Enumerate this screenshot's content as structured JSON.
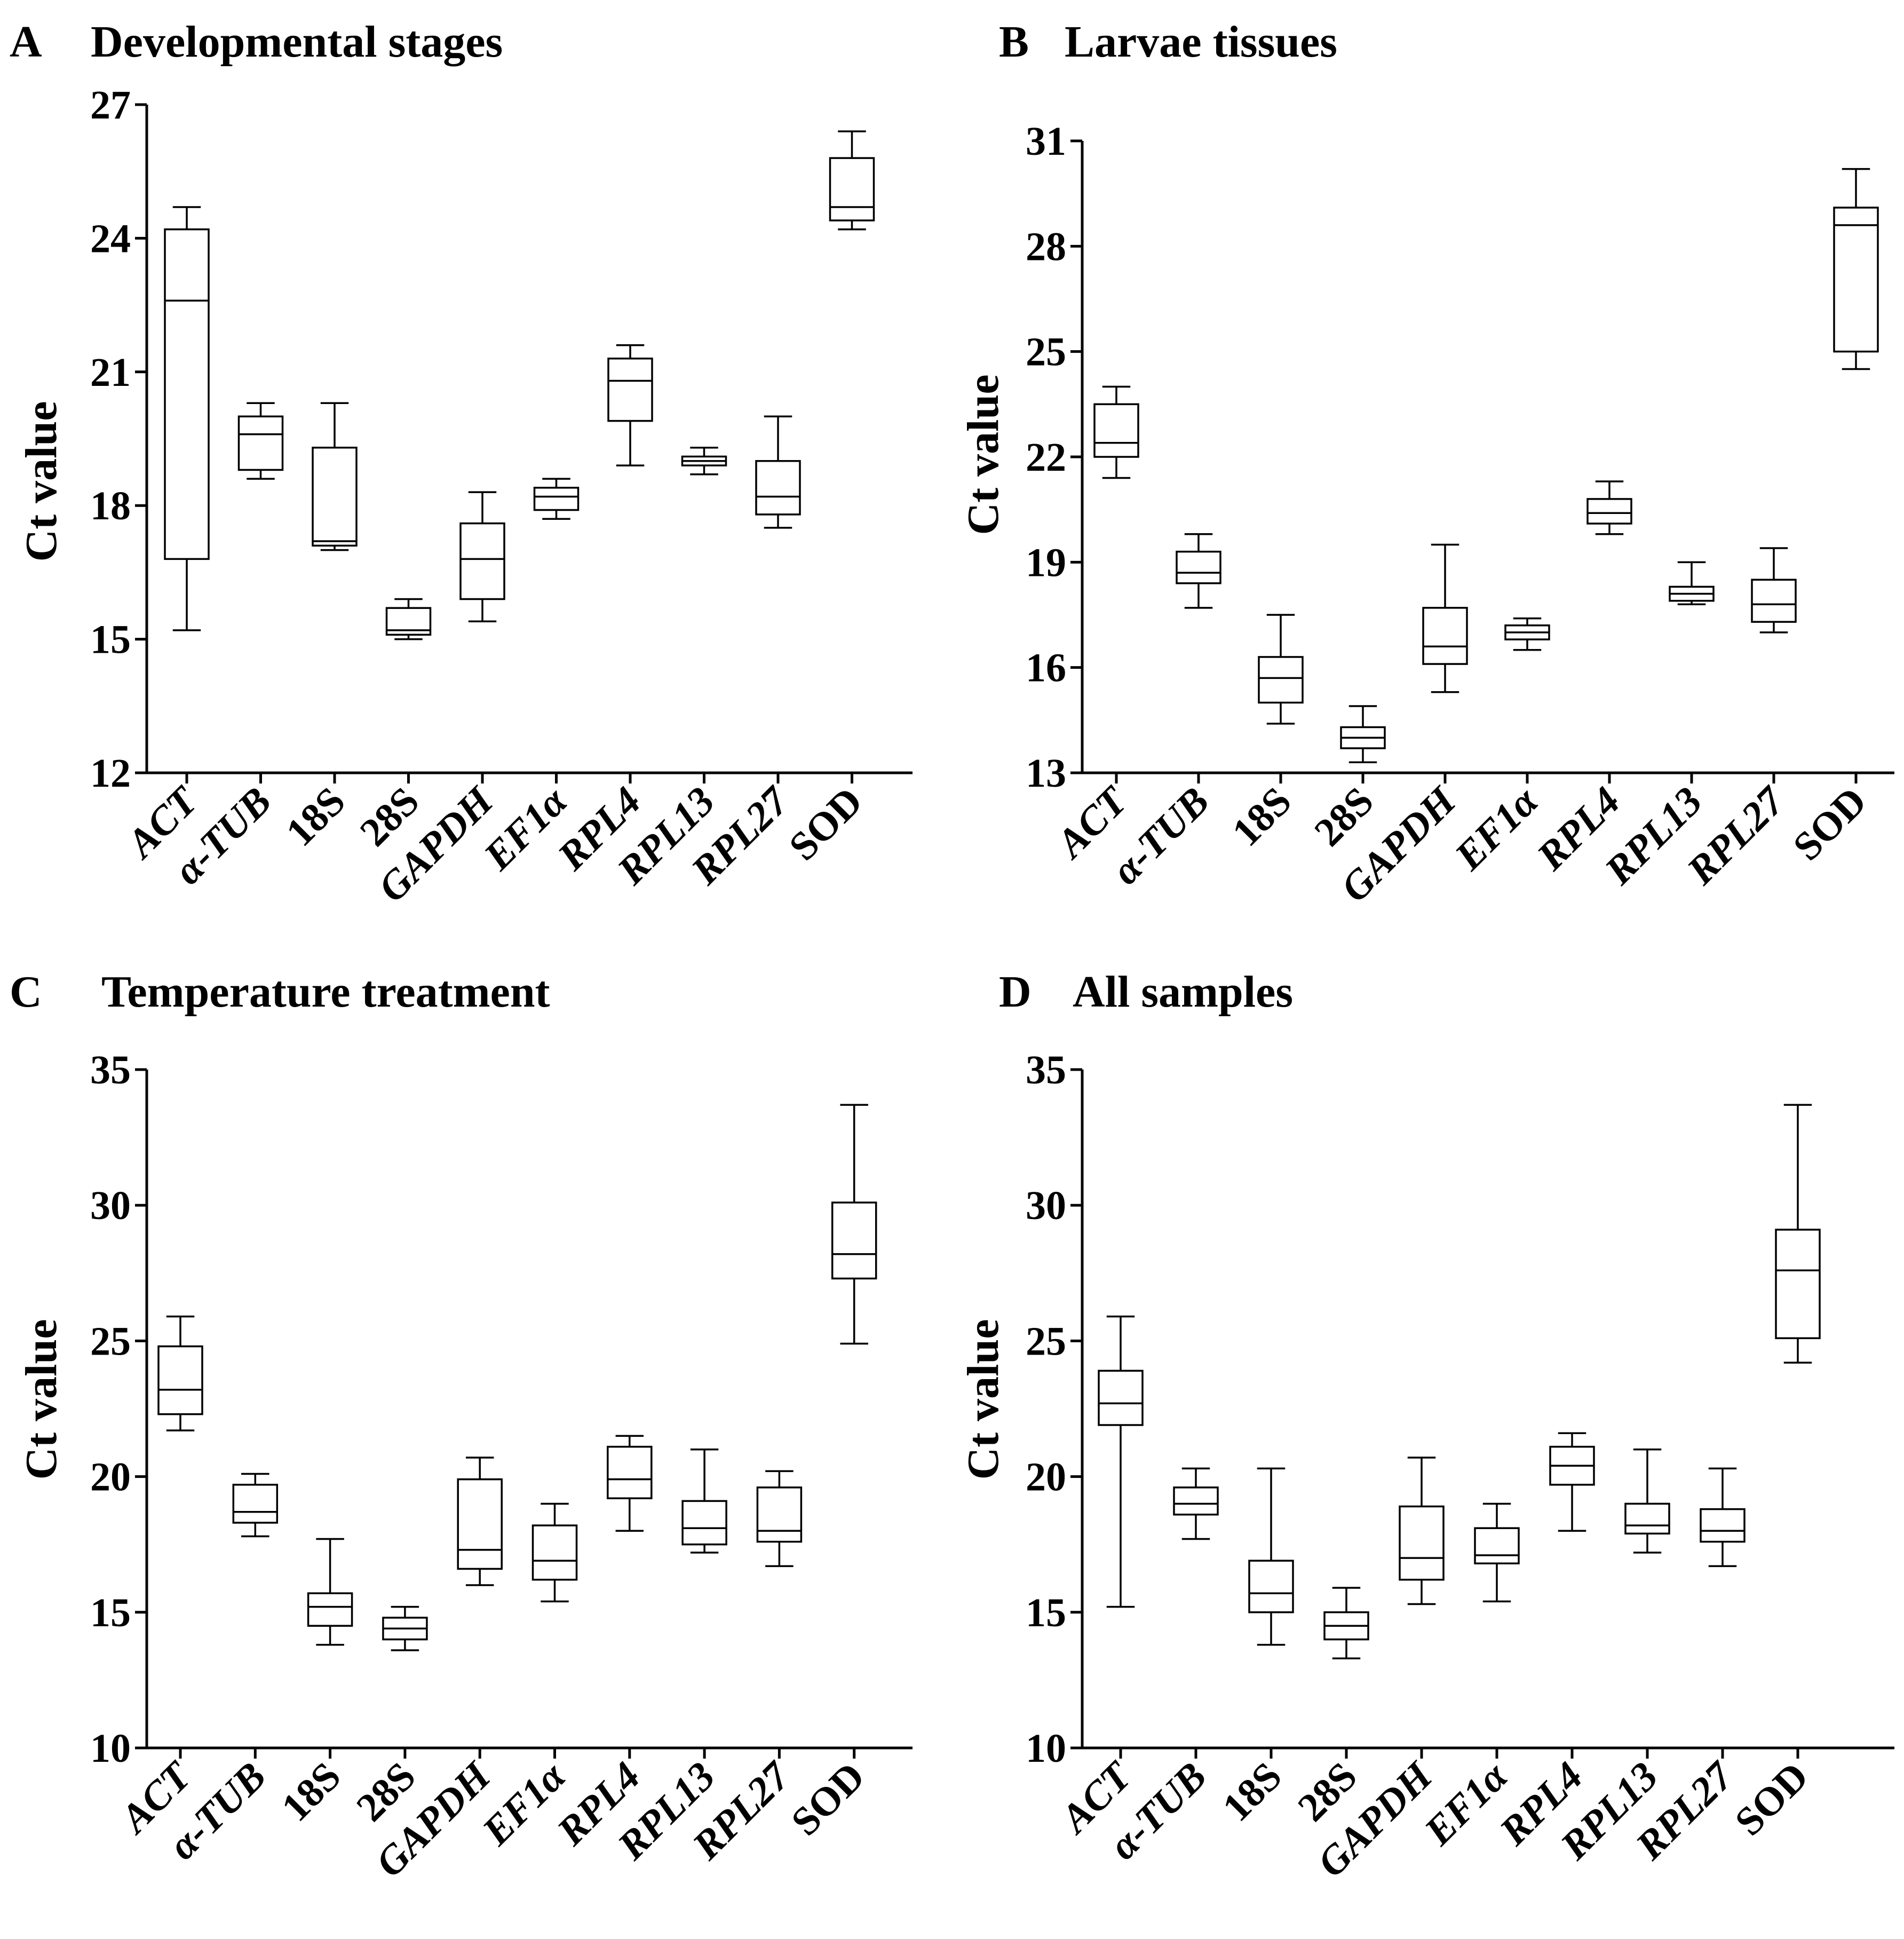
{
  "chart_data": [
    {
      "type": "box",
      "panel": "A",
      "title": "Developmental stages",
      "ylabel": "Ct value",
      "ylim": [
        12,
        27
      ],
      "yticks": [
        12,
        15,
        18,
        21,
        24,
        27
      ],
      "categories": [
        "ACT",
        "α-TUB",
        "18S",
        "28S",
        "GAPDH",
        "EF1α",
        "RPL4",
        "RPL13",
        "RPL27",
        "SOD"
      ],
      "boxes": [
        {
          "min": 15.2,
          "q1": 16.8,
          "median": 22.6,
          "q3": 24.2,
          "max": 24.7
        },
        {
          "min": 18.6,
          "q1": 18.8,
          "median": 19.6,
          "q3": 20.0,
          "max": 20.3
        },
        {
          "min": 17.0,
          "q1": 17.1,
          "median": 17.2,
          "q3": 19.3,
          "max": 20.3
        },
        {
          "min": 15.0,
          "q1": 15.1,
          "median": 15.2,
          "q3": 15.7,
          "max": 15.9
        },
        {
          "min": 15.4,
          "q1": 15.9,
          "median": 16.8,
          "q3": 17.6,
          "max": 18.3
        },
        {
          "min": 17.7,
          "q1": 17.9,
          "median": 18.2,
          "q3": 18.4,
          "max": 18.6
        },
        {
          "min": 18.9,
          "q1": 19.9,
          "median": 20.8,
          "q3": 21.3,
          "max": 21.6
        },
        {
          "min": 18.7,
          "q1": 18.9,
          "median": 19.0,
          "q3": 19.1,
          "max": 19.3
        },
        {
          "min": 17.5,
          "q1": 17.8,
          "median": 18.2,
          "q3": 19.0,
          "max": 20.0
        },
        {
          "min": 24.2,
          "q1": 24.4,
          "median": 24.7,
          "q3": 25.8,
          "max": 26.4
        }
      ]
    },
    {
      "type": "box",
      "panel": "B",
      "title": "Larvae tissues",
      "ylabel": "Ct value",
      "ylim": [
        13,
        31
      ],
      "yticks": [
        13,
        16,
        19,
        22,
        25,
        28,
        31
      ],
      "categories": [
        "ACT",
        "α-TUB",
        "18S",
        "28S",
        "GAPDH",
        "EF1α",
        "RPL4",
        "RPL13",
        "RPL27",
        "SOD"
      ],
      "boxes": [
        {
          "min": 21.4,
          "q1": 22.0,
          "median": 22.4,
          "q3": 23.5,
          "max": 24.0
        },
        {
          "min": 17.7,
          "q1": 18.4,
          "median": 18.7,
          "q3": 19.3,
          "max": 19.8
        },
        {
          "min": 14.4,
          "q1": 15.0,
          "median": 15.7,
          "q3": 16.3,
          "max": 17.5
        },
        {
          "min": 13.3,
          "q1": 13.7,
          "median": 14.0,
          "q3": 14.3,
          "max": 14.9
        },
        {
          "min": 15.3,
          "q1": 16.1,
          "median": 16.6,
          "q3": 17.7,
          "max": 19.5
        },
        {
          "min": 16.5,
          "q1": 16.8,
          "median": 17.0,
          "q3": 17.2,
          "max": 17.4
        },
        {
          "min": 19.8,
          "q1": 20.1,
          "median": 20.4,
          "q3": 20.8,
          "max": 21.3
        },
        {
          "min": 17.8,
          "q1": 17.9,
          "median": 18.1,
          "q3": 18.3,
          "max": 19.0
        },
        {
          "min": 17.0,
          "q1": 17.3,
          "median": 17.8,
          "q3": 18.5,
          "max": 19.4
        },
        {
          "min": 24.5,
          "q1": 25.0,
          "median": 28.6,
          "q3": 29.1,
          "max": 30.2
        }
      ]
    },
    {
      "type": "box",
      "panel": "C",
      "title": "Temperature treatment",
      "ylabel": "Ct value",
      "ylim": [
        10,
        35
      ],
      "yticks": [
        10,
        15,
        20,
        25,
        30,
        35
      ],
      "categories": [
        "ACT",
        "α-TUB",
        "18S",
        "28S",
        "GAPDH",
        "EF1α",
        "RPL4",
        "RPL13",
        "RPL27",
        "SOD"
      ],
      "boxes": [
        {
          "min": 21.7,
          "q1": 22.3,
          "median": 23.2,
          "q3": 24.8,
          "max": 25.9
        },
        {
          "min": 17.8,
          "q1": 18.3,
          "median": 18.7,
          "q3": 19.7,
          "max": 20.1
        },
        {
          "min": 13.8,
          "q1": 14.5,
          "median": 15.2,
          "q3": 15.7,
          "max": 17.7
        },
        {
          "min": 13.6,
          "q1": 14.0,
          "median": 14.4,
          "q3": 14.8,
          "max": 15.2
        },
        {
          "min": 16.0,
          "q1": 16.6,
          "median": 17.3,
          "q3": 19.9,
          "max": 20.7
        },
        {
          "min": 15.4,
          "q1": 16.2,
          "median": 16.9,
          "q3": 18.2,
          "max": 19.0
        },
        {
          "min": 18.0,
          "q1": 19.2,
          "median": 19.9,
          "q3": 21.1,
          "max": 21.5
        },
        {
          "min": 17.2,
          "q1": 17.5,
          "median": 18.1,
          "q3": 19.1,
          "max": 21.0
        },
        {
          "min": 16.7,
          "q1": 17.6,
          "median": 18.0,
          "q3": 19.6,
          "max": 20.2
        },
        {
          "min": 24.9,
          "q1": 27.3,
          "median": 28.2,
          "q3": 30.1,
          "max": 33.7
        }
      ]
    },
    {
      "type": "box",
      "panel": "D",
      "title": "All samples",
      "ylabel": "Ct value",
      "ylim": [
        10,
        35
      ],
      "yticks": [
        10,
        15,
        20,
        25,
        30,
        35
      ],
      "categories": [
        "ACT",
        "α-TUB",
        "18S",
        "28S",
        "GAPDH",
        "EF1α",
        "RPL4",
        "RPL13",
        "RPL27",
        "SOD"
      ],
      "boxes": [
        {
          "min": 15.2,
          "q1": 21.9,
          "median": 22.7,
          "q3": 23.9,
          "max": 25.9
        },
        {
          "min": 17.7,
          "q1": 18.6,
          "median": 19.0,
          "q3": 19.6,
          "max": 20.3
        },
        {
          "min": 13.8,
          "q1": 15.0,
          "median": 15.7,
          "q3": 16.9,
          "max": 20.3
        },
        {
          "min": 13.3,
          "q1": 14.0,
          "median": 14.5,
          "q3": 15.0,
          "max": 15.9
        },
        {
          "min": 15.3,
          "q1": 16.2,
          "median": 17.0,
          "q3": 18.9,
          "max": 20.7
        },
        {
          "min": 15.4,
          "q1": 16.8,
          "median": 17.1,
          "q3": 18.1,
          "max": 19.0
        },
        {
          "min": 18.0,
          "q1": 19.7,
          "median": 20.4,
          "q3": 21.1,
          "max": 21.6
        },
        {
          "min": 17.2,
          "q1": 17.9,
          "median": 18.2,
          "q3": 19.0,
          "max": 21.0
        },
        {
          "min": 16.7,
          "q1": 17.6,
          "median": 18.0,
          "q3": 18.8,
          "max": 20.3
        },
        {
          "min": 24.2,
          "q1": 25.1,
          "median": 27.6,
          "q3": 29.1,
          "max": 33.7
        }
      ]
    }
  ]
}
